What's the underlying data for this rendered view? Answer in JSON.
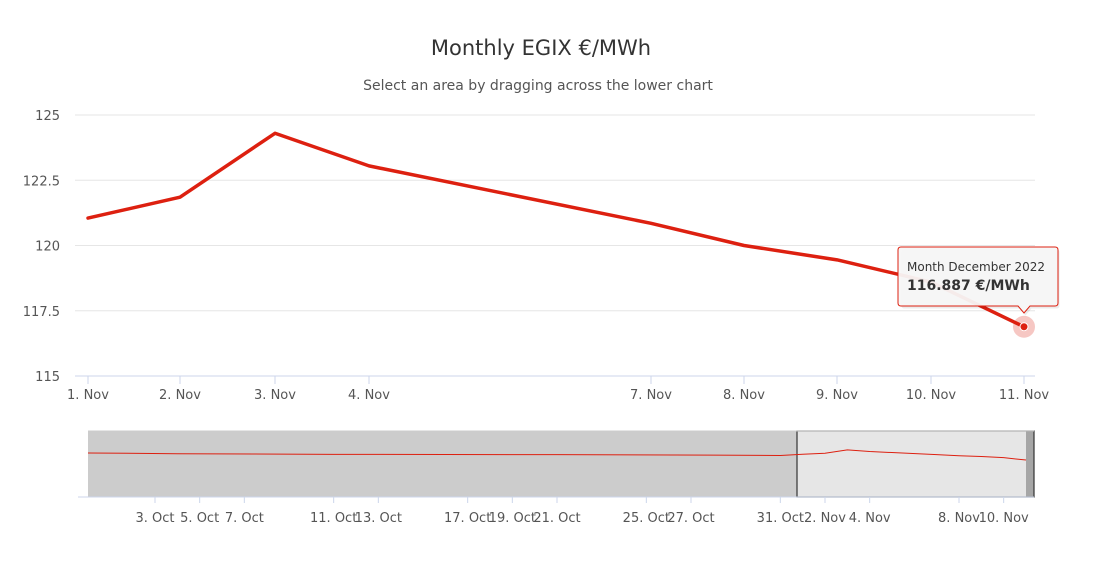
{
  "chart_data": {
    "type": "line",
    "title": "Monthly EGIX €/MWh",
    "subtitle": "Select an area by dragging across the lower chart",
    "xlabel": "",
    "ylabel": "",
    "ylim": [
      115,
      125
    ],
    "y_ticks": [
      "125",
      "122.5",
      "120",
      "117.5",
      "115"
    ],
    "y_tick_values": [
      125,
      122.5,
      120,
      117.5,
      115
    ],
    "x_ticks": [
      "1. Nov",
      "2. Nov",
      "3. Nov",
      "4. Nov",
      "7. Nov",
      "8. Nov",
      "9. Nov",
      "10. Nov",
      "11. Nov"
    ],
    "x_tick_days": [
      1,
      2,
      3,
      4,
      7,
      8,
      9,
      10,
      11
    ],
    "series": [
      {
        "x_days": [
          1,
          2,
          3,
          4,
          7,
          8,
          9,
          10,
          11
        ],
        "values": [
          121.05,
          121.85,
          124.3,
          123.05,
          120.85,
          120.0,
          119.45,
          118.6,
          116.887
        ],
        "color": "#dd2010"
      }
    ],
    "tooltip": {
      "header": "Month December 2022",
      "value": "116.887 €/MWh",
      "border_color": "#dd2010"
    },
    "grid": true,
    "navigator": {
      "x_ticks": [
        "3. Oct",
        "5. Oct",
        "7. Oct",
        "11. Oct",
        "13. Oct",
        "17. Oct",
        "19. Oct",
        "21. Oct",
        "25. Oct",
        "27. Oct",
        "31. Oct",
        "2. Nov",
        "4. Nov",
        "8. Nov",
        "10. Nov"
      ],
      "x_tick_days": [
        -28,
        -26,
        -24,
        -20,
        -18,
        -14,
        -12,
        -10,
        -6,
        -4,
        0,
        2,
        4,
        8,
        10
      ],
      "series_days": [
        -31,
        -27,
        -20,
        -10,
        -3,
        0,
        1,
        2,
        3,
        4,
        7,
        8,
        9,
        10,
        11
      ],
      "series_values": [
        122.0,
        121.5,
        121.0,
        120.8,
        120.5,
        120.2,
        121.05,
        121.85,
        124.3,
        123.05,
        120.85,
        120.0,
        119.45,
        118.6,
        116.887
      ],
      "selected_range_days": [
        1,
        11
      ],
      "mask_color": "#cccccc",
      "selection_color": "#e6e6e6",
      "line_color": "#dd2010"
    }
  }
}
